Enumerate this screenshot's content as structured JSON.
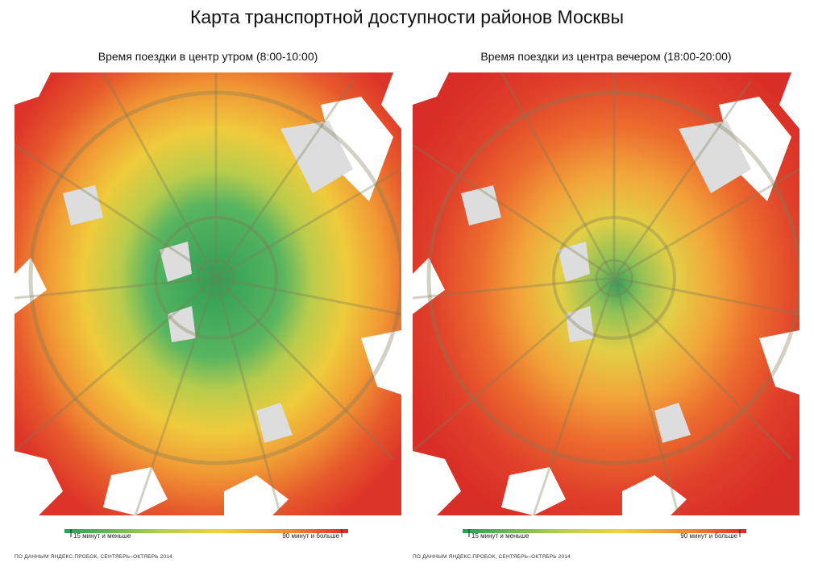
{
  "title": "Карта транспортной доступности районов Москвы",
  "panels": [
    {
      "subtitle": "Время поездки в центр утром (8:00-10:00)",
      "legend": {
        "min_label": "15 минут и меньше",
        "max_label": "90 минут и больше"
      },
      "source": "ПО ДАННЫМ ЯНДЕКС.ПРОБОК, СЕНТЯБРЬ–ОКТЯБРЬ 2014"
    },
    {
      "subtitle": "Время поездки из центра вечером (18:00-20:00)",
      "legend": {
        "min_label": "15 минут и меньше",
        "max_label": "90 минут и больше"
      },
      "source": "ПО ДАННЫМ ЯНДЕКС.ПРОБОК, СЕНТЯБРЬ–ОКТЯБРЬ 2014"
    }
  ]
}
